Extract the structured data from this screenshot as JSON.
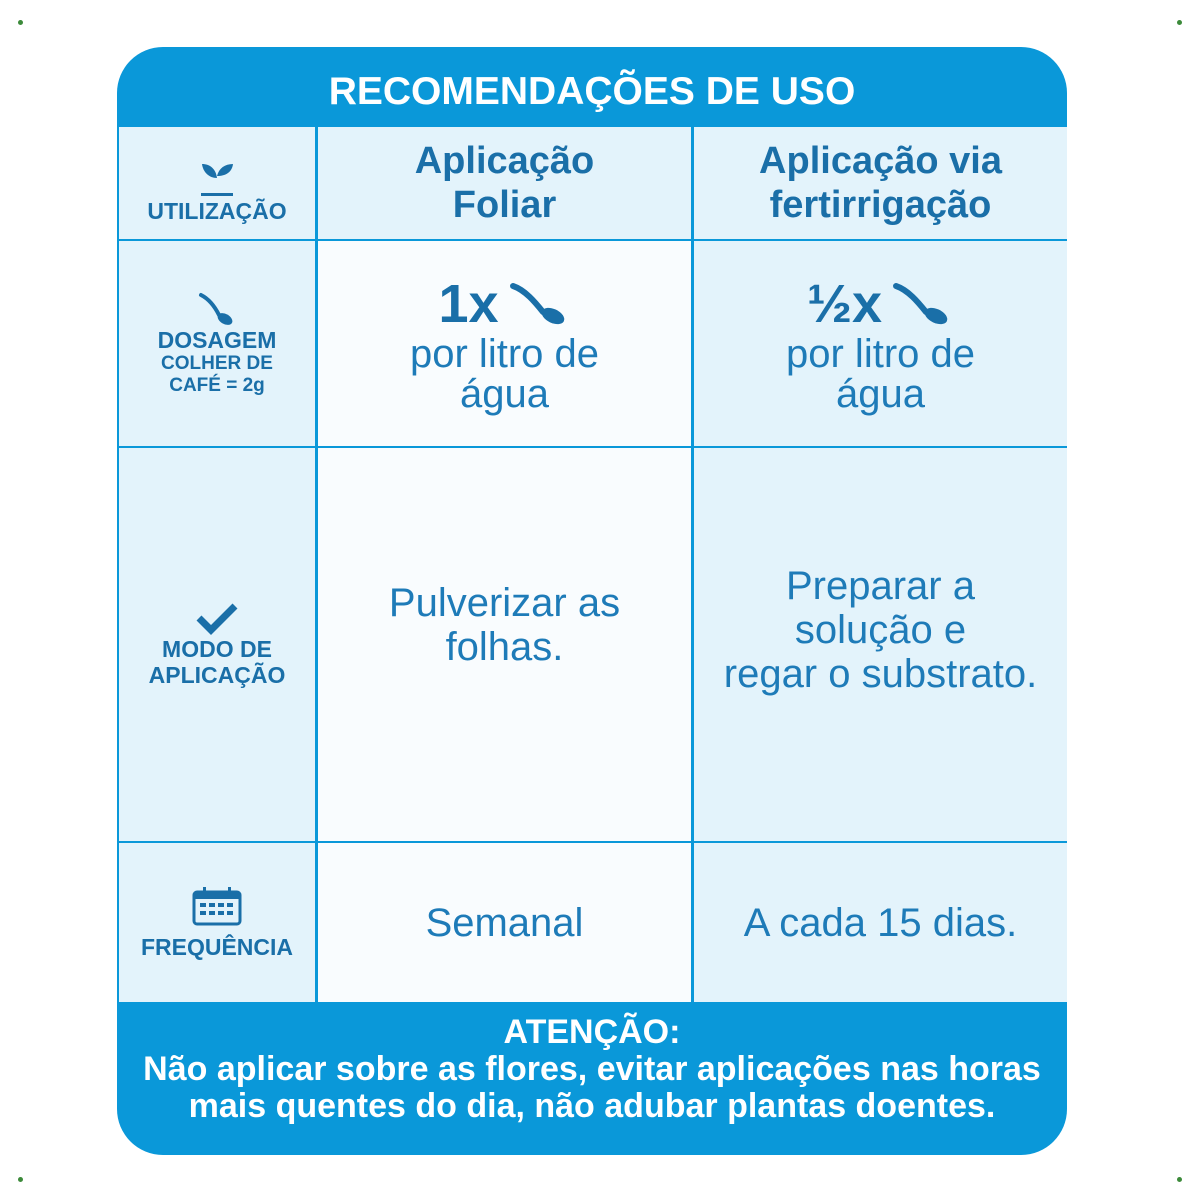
{
  "header": {
    "title": "RECOMENDAÇÕES DE USO"
  },
  "table": {
    "head": {
      "label": [
        "UTILIZAÇÃO"
      ],
      "cells": [
        [
          "Aplicação",
          "Foliar"
        ],
        [
          "Aplicação via",
          "fertirrigação"
        ]
      ]
    },
    "rows": [
      {
        "label": [
          "DOSAGEM",
          "COLHER DE",
          "CAFÉ = 2g"
        ],
        "cells": [
          {
            "amount": "1x",
            "text": [
              "por litro de",
              "água"
            ]
          },
          {
            "amount": "½x",
            "text": [
              "por litro de",
              "água"
            ]
          }
        ]
      },
      {
        "label": [
          "MODO DE",
          "APLICAÇÃO"
        ],
        "cells": [
          [
            "Pulverizar as",
            "folhas."
          ],
          [
            "Preparar a",
            "solução e",
            "regar o substrato."
          ]
        ]
      },
      {
        "label": [
          "FREQUÊNCIA"
        ],
        "cells": [
          [
            "Semanal"
          ],
          [
            "A cada 15 dias."
          ]
        ]
      }
    ]
  },
  "footer": {
    "title": "ATENÇÃO:",
    "lines": [
      "Não aplicar sobre as flores, evitar aplicações nas horas",
      "mais quentes do dia, não adubar plantas doentes."
    ]
  }
}
